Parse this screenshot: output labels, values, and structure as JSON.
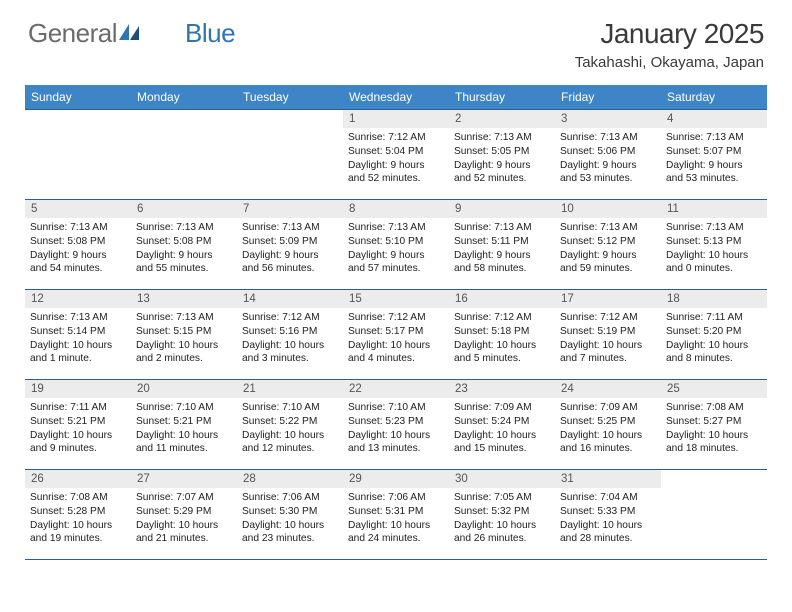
{
  "logo": {
    "text1": "General",
    "text2": "Blue"
  },
  "title": "January 2025",
  "location": "Takahashi, Okayama, Japan",
  "colors": {
    "header_bg": "#3d85c6",
    "header_text": "#ffffff",
    "daynum_bg": "#ececec",
    "border": "#2e5d8a",
    "logo_gray": "#6b6b6b",
    "logo_blue": "#2e75b6"
  },
  "weekdays": [
    "Sunday",
    "Monday",
    "Tuesday",
    "Wednesday",
    "Thursday",
    "Friday",
    "Saturday"
  ],
  "weeks": [
    [
      {
        "empty": true
      },
      {
        "empty": true
      },
      {
        "empty": true
      },
      {
        "n": "1",
        "sunrise": "7:12 AM",
        "sunset": "5:04 PM",
        "daylight": "9 hours and 52 minutes."
      },
      {
        "n": "2",
        "sunrise": "7:13 AM",
        "sunset": "5:05 PM",
        "daylight": "9 hours and 52 minutes."
      },
      {
        "n": "3",
        "sunrise": "7:13 AM",
        "sunset": "5:06 PM",
        "daylight": "9 hours and 53 minutes."
      },
      {
        "n": "4",
        "sunrise": "7:13 AM",
        "sunset": "5:07 PM",
        "daylight": "9 hours and 53 minutes."
      }
    ],
    [
      {
        "n": "5",
        "sunrise": "7:13 AM",
        "sunset": "5:08 PM",
        "daylight": "9 hours and 54 minutes."
      },
      {
        "n": "6",
        "sunrise": "7:13 AM",
        "sunset": "5:08 PM",
        "daylight": "9 hours and 55 minutes."
      },
      {
        "n": "7",
        "sunrise": "7:13 AM",
        "sunset": "5:09 PM",
        "daylight": "9 hours and 56 minutes."
      },
      {
        "n": "8",
        "sunrise": "7:13 AM",
        "sunset": "5:10 PM",
        "daylight": "9 hours and 57 minutes."
      },
      {
        "n": "9",
        "sunrise": "7:13 AM",
        "sunset": "5:11 PM",
        "daylight": "9 hours and 58 minutes."
      },
      {
        "n": "10",
        "sunrise": "7:13 AM",
        "sunset": "5:12 PM",
        "daylight": "9 hours and 59 minutes."
      },
      {
        "n": "11",
        "sunrise": "7:13 AM",
        "sunset": "5:13 PM",
        "daylight": "10 hours and 0 minutes."
      }
    ],
    [
      {
        "n": "12",
        "sunrise": "7:13 AM",
        "sunset": "5:14 PM",
        "daylight": "10 hours and 1 minute."
      },
      {
        "n": "13",
        "sunrise": "7:13 AM",
        "sunset": "5:15 PM",
        "daylight": "10 hours and 2 minutes."
      },
      {
        "n": "14",
        "sunrise": "7:12 AM",
        "sunset": "5:16 PM",
        "daylight": "10 hours and 3 minutes."
      },
      {
        "n": "15",
        "sunrise": "7:12 AM",
        "sunset": "5:17 PM",
        "daylight": "10 hours and 4 minutes."
      },
      {
        "n": "16",
        "sunrise": "7:12 AM",
        "sunset": "5:18 PM",
        "daylight": "10 hours and 5 minutes."
      },
      {
        "n": "17",
        "sunrise": "7:12 AM",
        "sunset": "5:19 PM",
        "daylight": "10 hours and 7 minutes."
      },
      {
        "n": "18",
        "sunrise": "7:11 AM",
        "sunset": "5:20 PM",
        "daylight": "10 hours and 8 minutes."
      }
    ],
    [
      {
        "n": "19",
        "sunrise": "7:11 AM",
        "sunset": "5:21 PM",
        "daylight": "10 hours and 9 minutes."
      },
      {
        "n": "20",
        "sunrise": "7:10 AM",
        "sunset": "5:21 PM",
        "daylight": "10 hours and 11 minutes."
      },
      {
        "n": "21",
        "sunrise": "7:10 AM",
        "sunset": "5:22 PM",
        "daylight": "10 hours and 12 minutes."
      },
      {
        "n": "22",
        "sunrise": "7:10 AM",
        "sunset": "5:23 PM",
        "daylight": "10 hours and 13 minutes."
      },
      {
        "n": "23",
        "sunrise": "7:09 AM",
        "sunset": "5:24 PM",
        "daylight": "10 hours and 15 minutes."
      },
      {
        "n": "24",
        "sunrise": "7:09 AM",
        "sunset": "5:25 PM",
        "daylight": "10 hours and 16 minutes."
      },
      {
        "n": "25",
        "sunrise": "7:08 AM",
        "sunset": "5:27 PM",
        "daylight": "10 hours and 18 minutes."
      }
    ],
    [
      {
        "n": "26",
        "sunrise": "7:08 AM",
        "sunset": "5:28 PM",
        "daylight": "10 hours and 19 minutes."
      },
      {
        "n": "27",
        "sunrise": "7:07 AM",
        "sunset": "5:29 PM",
        "daylight": "10 hours and 21 minutes."
      },
      {
        "n": "28",
        "sunrise": "7:06 AM",
        "sunset": "5:30 PM",
        "daylight": "10 hours and 23 minutes."
      },
      {
        "n": "29",
        "sunrise": "7:06 AM",
        "sunset": "5:31 PM",
        "daylight": "10 hours and 24 minutes."
      },
      {
        "n": "30",
        "sunrise": "7:05 AM",
        "sunset": "5:32 PM",
        "daylight": "10 hours and 26 minutes."
      },
      {
        "n": "31",
        "sunrise": "7:04 AM",
        "sunset": "5:33 PM",
        "daylight": "10 hours and 28 minutes."
      },
      {
        "empty": true
      }
    ]
  ],
  "labels": {
    "sunrise": "Sunrise:",
    "sunset": "Sunset:",
    "daylight": "Daylight:"
  }
}
